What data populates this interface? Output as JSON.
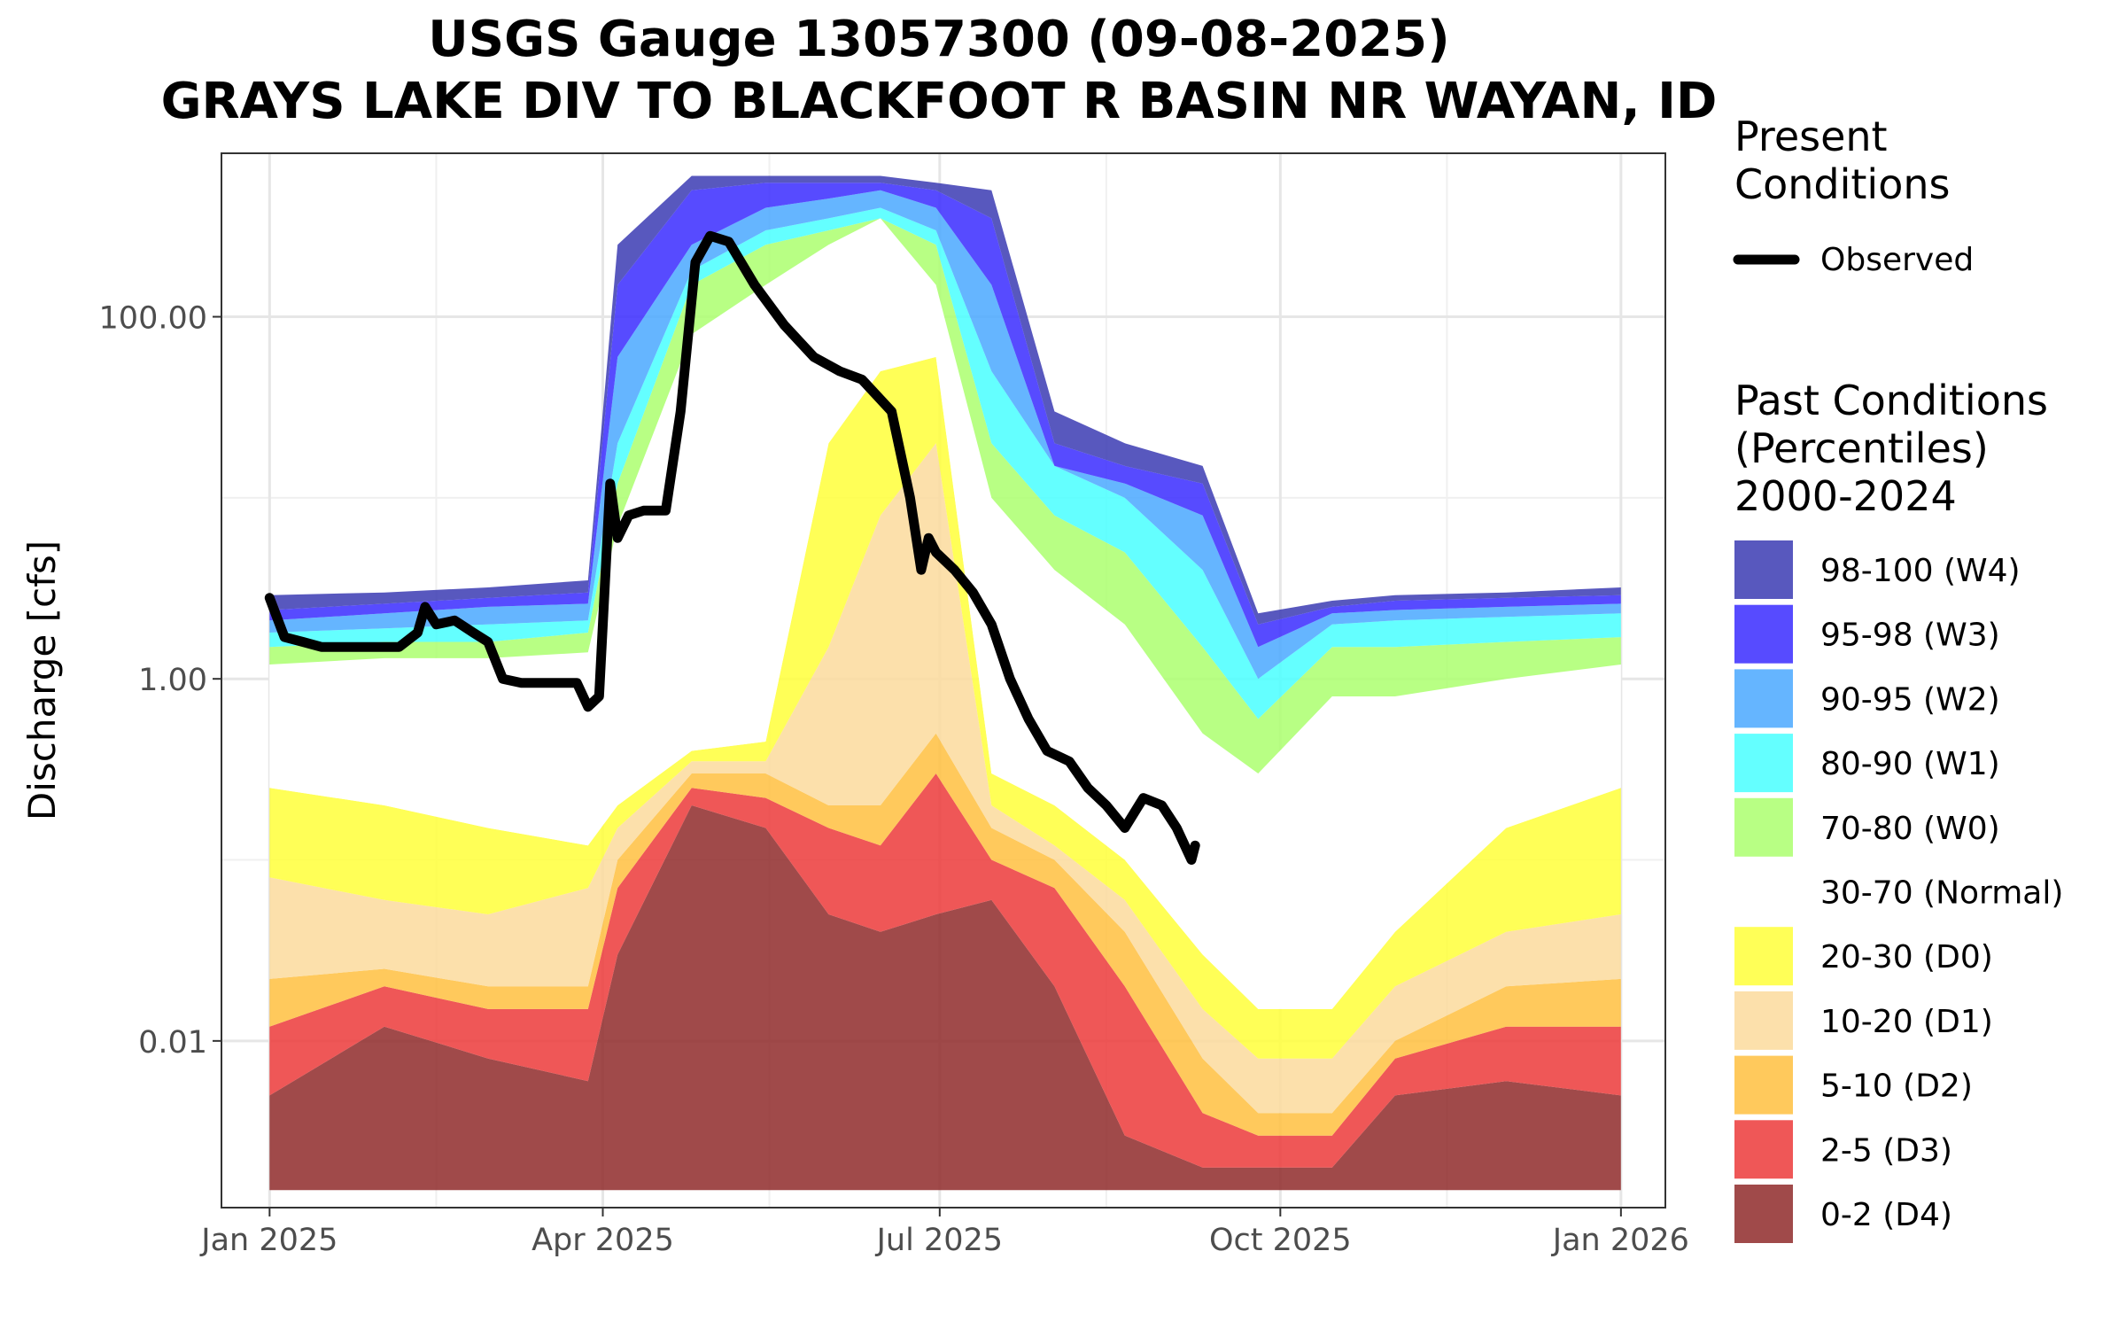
{
  "chart_data": {
    "type": "area",
    "title": "USGS Gauge 13057300 (09-08-2025)",
    "subtitle": "GRAYS LAKE DIV TO BLACKFOOT R BASIN NR WAYAN, ID",
    "ylabel": "Discharge [cfs]",
    "xlabel": "",
    "y_scale": "log10",
    "ylim": [
      0.0012,
      800
    ],
    "xlim": [
      "2024-12-19",
      "2026-01-13"
    ],
    "grid": true,
    "legend_position": "right",
    "y_ticks": [
      {
        "value": 100,
        "label": "100.00"
      },
      {
        "value": 1,
        "label": "1.00"
      },
      {
        "value": 0.01,
        "label": "0.01"
      }
    ],
    "x_ticks": [
      {
        "date": "2025-01-01",
        "label": "Jan 2025"
      },
      {
        "date": "2025-04-01",
        "label": "Apr 2025"
      },
      {
        "date": "2025-07-01",
        "label": "Jul 2025"
      },
      {
        "date": "2025-10-01",
        "label": "Oct 2025"
      },
      {
        "date": "2026-01-01",
        "label": "Jan 2026"
      }
    ],
    "legend": {
      "present_title": "Present\nConditions",
      "observed_label": "Observed",
      "past_title": "Past Conditions\n(Percentiles)\n2000-2024",
      "entries": [
        {
          "label": "98-100 (W4)",
          "color": "#3b3bb3"
        },
        {
          "label": "95-98 (W3)",
          "color": "#3a2bff"
        },
        {
          "label": "90-95 (W2)",
          "color": "#4aa8ff"
        },
        {
          "label": "80-90 (W1)",
          "color": "#49ffff"
        },
        {
          "label": "70-80 (W0)",
          "color": "#acff6e"
        },
        {
          "label": "30-70 (Normal)",
          "color": "#ffffff"
        },
        {
          "label": "20-30 (D0)",
          "color": "#ffff3a"
        },
        {
          "label": "10-20 (D1)",
          "color": "#fcdb9c"
        },
        {
          "label": "5-10 (D2)",
          "color": "#ffc040"
        },
        {
          "label": "2-5 (D3)",
          "color": "#ec3a3a"
        },
        {
          "label": "0-2 (D4)",
          "color": "#8f2a2a"
        }
      ]
    },
    "band_dates": [
      "2025-01-01",
      "2025-02-01",
      "2025-03-01",
      "2025-03-28",
      "2025-04-05",
      "2025-04-25",
      "2025-05-15",
      "2025-06-01",
      "2025-06-15",
      "2025-06-30",
      "2025-07-15",
      "2025-08-01",
      "2025-08-20",
      "2025-09-10",
      "2025-09-25",
      "2025-10-15",
      "2025-11-01",
      "2025-12-01",
      "2026-01-01"
    ],
    "percentile_bounds": [
      [
        0.0015,
        0.0015,
        0.0015,
        0.0015,
        0.0015,
        0.0015,
        0.0015,
        0.0015,
        0.0015,
        0.0015,
        0.0015,
        0.0015,
        0.0015,
        0.0015,
        0.0015,
        0.0015,
        0.0015,
        0.0015,
        0.0015
      ],
      [
        0.005,
        0.012,
        0.008,
        0.006,
        0.03,
        0.2,
        0.15,
        0.05,
        0.04,
        0.05,
        0.06,
        0.02,
        0.003,
        0.002,
        0.002,
        0.002,
        0.005,
        0.006,
        0.005
      ],
      [
        0.012,
        0.02,
        0.015,
        0.015,
        0.07,
        0.25,
        0.22,
        0.15,
        0.12,
        0.3,
        0.1,
        0.07,
        0.02,
        0.004,
        0.003,
        0.003,
        0.008,
        0.012,
        0.012
      ],
      [
        0.022,
        0.025,
        0.02,
        0.02,
        0.1,
        0.3,
        0.3,
        0.2,
        0.2,
        0.5,
        0.15,
        0.1,
        0.04,
        0.008,
        0.004,
        0.004,
        0.01,
        0.02,
        0.022
      ],
      [
        0.08,
        0.06,
        0.05,
        0.07,
        0.15,
        0.35,
        0.35,
        1.5,
        8,
        20,
        0.2,
        0.12,
        0.06,
        0.015,
        0.008,
        0.008,
        0.02,
        0.04,
        0.05
      ],
      [
        0.25,
        0.2,
        0.15,
        0.12,
        0.2,
        0.4,
        0.45,
        20,
        50,
        60,
        0.3,
        0.2,
        0.1,
        0.03,
        0.015,
        0.015,
        0.04,
        0.15,
        0.25
      ],
      [
        1.2,
        1.3,
        1.3,
        1.4,
        7,
        80,
        150,
        250,
        350,
        150,
        10,
        4,
        2,
        0.5,
        0.3,
        0.8,
        0.8,
        1,
        1.2
      ],
      [
        1.5,
        1.6,
        1.6,
        1.8,
        12,
        150,
        250,
        300,
        350,
        250,
        20,
        8,
        5,
        1.5,
        0.6,
        1.5,
        1.5,
        1.6,
        1.7
      ],
      [
        1.8,
        1.9,
        2,
        2.1,
        20,
        180,
        300,
        350,
        400,
        300,
        50,
        15,
        10,
        4,
        1,
        2,
        2.1,
        2.2,
        2.3
      ],
      [
        2.1,
        2.3,
        2.5,
        2.6,
        60,
        250,
        400,
        450,
        500,
        400,
        150,
        15,
        12,
        8,
        1.5,
        2.3,
        2.4,
        2.5,
        2.6
      ],
      [
        2.4,
        2.6,
        2.8,
        3,
        150,
        500,
        550,
        550,
        550,
        500,
        350,
        20,
        15,
        12,
        2,
        2.5,
        2.7,
        2.8,
        2.9
      ],
      [
        2.9,
        3,
        3.2,
        3.5,
        250,
        600,
        600,
        600,
        600,
        550,
        500,
        30,
        20,
        15,
        2.3,
        2.7,
        2.9,
        3,
        3.2
      ]
    ],
    "observed": {
      "name": "Observed",
      "color": "#000000",
      "dates": [
        "2025-01-01",
        "2025-01-05",
        "2025-01-10",
        "2025-01-15",
        "2025-01-22",
        "2025-02-05",
        "2025-02-10",
        "2025-02-12",
        "2025-02-15",
        "2025-02-20",
        "2025-02-25",
        "2025-03-01",
        "2025-03-05",
        "2025-03-10",
        "2025-03-15",
        "2025-03-25",
        "2025-03-28",
        "2025-03-31",
        "2025-04-03",
        "2025-04-05",
        "2025-04-08",
        "2025-04-12",
        "2025-04-18",
        "2025-04-22",
        "2025-04-26",
        "2025-04-30",
        "2025-05-05",
        "2025-05-12",
        "2025-05-20",
        "2025-05-28",
        "2025-06-04",
        "2025-06-10",
        "2025-06-18",
        "2025-06-23",
        "2025-06-26",
        "2025-06-28",
        "2025-06-30",
        "2025-07-05",
        "2025-07-10",
        "2025-07-15",
        "2025-07-20",
        "2025-07-25",
        "2025-07-30",
        "2025-08-05",
        "2025-08-10",
        "2025-08-15",
        "2025-08-20",
        "2025-08-25",
        "2025-08-30",
        "2025-09-03",
        "2025-09-07",
        "2025-09-08"
      ],
      "values": [
        2.8,
        1.7,
        1.6,
        1.5,
        1.5,
        1.5,
        1.8,
        2.5,
        2,
        2.1,
        1.8,
        1.6,
        1,
        0.95,
        0.95,
        0.95,
        0.7,
        0.8,
        12,
        6,
        8,
        8.5,
        8.5,
        30,
        200,
        280,
        260,
        150,
        90,
        60,
        50,
        45,
        30,
        10,
        4,
        6,
        5,
        4,
        3,
        2,
        1,
        0.6,
        0.4,
        0.35,
        0.25,
        0.2,
        0.15,
        0.22,
        0.2,
        0.15,
        0.1,
        0.12
      ]
    }
  }
}
